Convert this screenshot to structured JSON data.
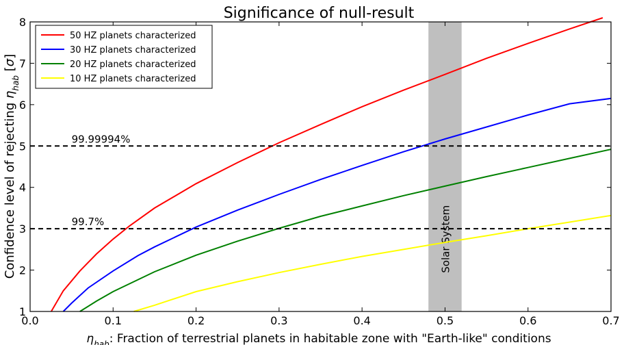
{
  "chart_data": {
    "type": "line",
    "title": "Significance of null-result",
    "xlabel": "η_hab: Fraction of terrestrial planets in habitable zone with \"Earth-like\" conditions",
    "ylabel": "Confidence level of rejecting η_hab [σ]",
    "xlim": [
      0.0,
      0.7
    ],
    "ylim": [
      1,
      8
    ],
    "xticks": [
      "0.0",
      "0.1",
      "0.2",
      "0.3",
      "0.4",
      "0.5",
      "0.6",
      "0.7"
    ],
    "yticks": [
      "1",
      "2",
      "3",
      "4",
      "5",
      "6",
      "7",
      "8"
    ],
    "grid": false,
    "legend_position": "top-left",
    "series": [
      {
        "name": "50 HZ planets characterized",
        "color": "#ff0000",
        "x": [
          0.0255,
          0.04,
          0.06,
          0.08,
          0.1,
          0.12,
          0.15,
          0.2,
          0.25,
          0.3,
          0.35,
          0.4,
          0.45,
          0.5,
          0.55,
          0.6,
          0.65,
          0.69
        ],
        "y": [
          1.0,
          1.5,
          1.98,
          2.39,
          2.75,
          3.07,
          3.5,
          4.09,
          4.6,
          5.08,
          5.52,
          5.95,
          6.35,
          6.73,
          7.12,
          7.48,
          7.83,
          8.1
        ]
      },
      {
        "name": "30 HZ planets characterized",
        "color": "#0000ff",
        "x": [
          0.04,
          0.05,
          0.07,
          0.1,
          0.13,
          0.15,
          0.2,
          0.25,
          0.3,
          0.35,
          0.4,
          0.45,
          0.5,
          0.55,
          0.6,
          0.65,
          0.7
        ],
        "y": [
          1.0,
          1.2,
          1.57,
          1.98,
          2.35,
          2.56,
          3.04,
          3.45,
          3.83,
          4.19,
          4.53,
          4.86,
          5.17,
          5.46,
          5.75,
          6.02,
          6.15
        ]
      },
      {
        "name": "20 HZ planets characterized",
        "color": "#008000",
        "x": [
          0.06,
          0.08,
          0.1,
          0.15,
          0.2,
          0.25,
          0.3,
          0.35,
          0.4,
          0.45,
          0.5,
          0.55,
          0.6,
          0.65,
          0.7
        ],
        "y": [
          1.0,
          1.25,
          1.48,
          1.96,
          2.36,
          2.7,
          3.01,
          3.3,
          3.55,
          3.8,
          4.03,
          4.26,
          4.48,
          4.7,
          4.92
        ]
      },
      {
        "name": "10 HZ planets characterized",
        "color": "#ffff00",
        "x": [
          0.125,
          0.15,
          0.2,
          0.25,
          0.3,
          0.35,
          0.4,
          0.45,
          0.5,
          0.55,
          0.6,
          0.65,
          0.7
        ],
        "y": [
          1.0,
          1.15,
          1.48,
          1.72,
          1.94,
          2.14,
          2.33,
          2.5,
          2.67,
          2.83,
          3.0,
          3.16,
          3.32
        ]
      }
    ],
    "hlines": [
      {
        "y": 5,
        "label": "99.99994%",
        "label_x": 0.05
      },
      {
        "y": 3,
        "label": "99.7%",
        "label_x": 0.05
      }
    ],
    "band": {
      "x0": 0.48,
      "x1": 0.52,
      "label": "Solar System",
      "color": "#bfbfbf"
    }
  }
}
